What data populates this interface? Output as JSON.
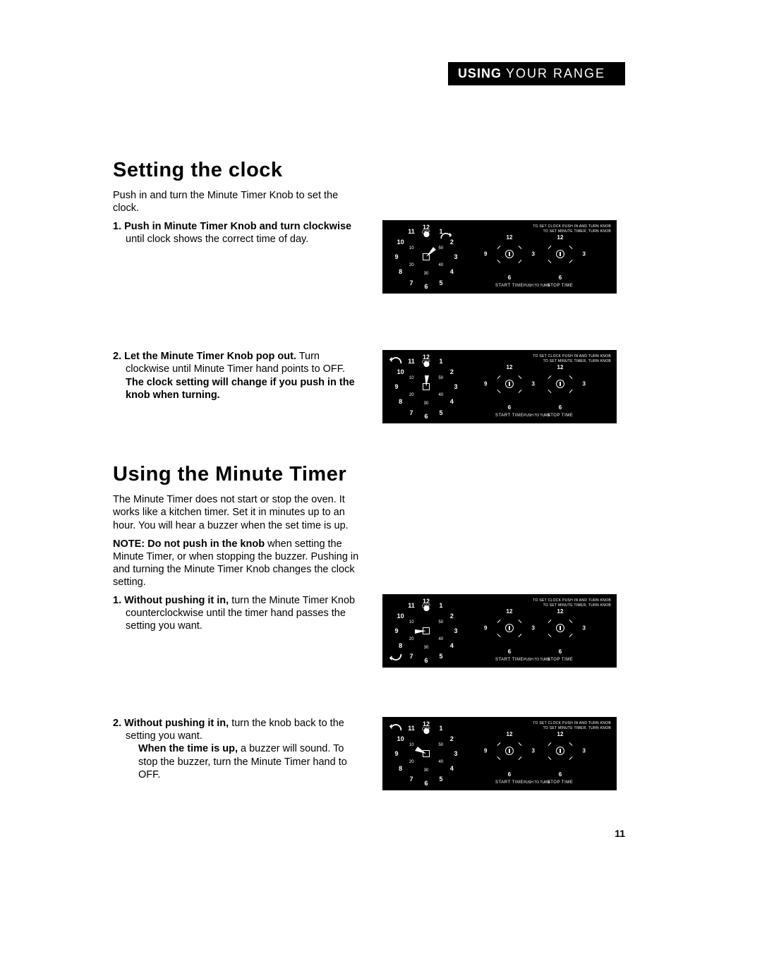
{
  "header": {
    "bold": "USING",
    "rest": "YOUR RANGE"
  },
  "page_number": "11",
  "section1": {
    "title": "Setting the clock",
    "intro": "Push in and turn the Minute Timer Knob to set the clock.",
    "step1_num": "1. ",
    "step1_bold": "Push in Minute Timer Knob and turn clockwise",
    "step1_rest": " until clock shows the correct time of day.",
    "step2_num": "2. ",
    "step2_bold1": "Let the Minute Timer Knob pop out.",
    "step2_mid": " Turn clockwise until Minute Timer hand points to OFF. ",
    "step2_bold2": "The clock setting will change if you push in the knob when turning."
  },
  "section2": {
    "title": "Using the Minute Timer",
    "intro": "The Minute Timer does not start or stop the oven. It works like a kitchen timer. Set it in minutes up to an hour. You will hear a buzzer when the set time is up.",
    "note_bold": "NOTE: Do not push in the knob",
    "note_rest": " when setting the Minute Timer, or when stopping the buzzer. Pushing in and turning the Minute Timer Knob changes the clock setting.",
    "step1_num": "1. ",
    "step1_bold": "Without pushing it in,",
    "step1_rest": " turn the Minute Timer Knob counterclockwise until the timer hand passes the setting you want.",
    "step2_num": "2. ",
    "step2_bold1": "Without pushing it in,",
    "step2_mid": " turn the knob back to the setting you want.",
    "step2_indent_bold": "When the time is up,",
    "step2_indent_rest": " a buzzer will sound. To stop the buzzer, turn the Minute Timer hand to OFF."
  },
  "panel": {
    "hours": [
      "12",
      "1",
      "2",
      "3",
      "4",
      "5",
      "6",
      "7",
      "8",
      "9",
      "10",
      "11"
    ],
    "off": "OFF",
    "minutes": [
      "10",
      "20",
      "30",
      "40",
      "50"
    ],
    "top_text1": "TO SET CLOCK PUSH IN AND TURN KNOB",
    "top_text2": "TO SET MINUTE TIMER, TURN KNOB",
    "push": "PUSH TO TURN",
    "start": "START TIME",
    "stop": "STOP TIME",
    "sub_nums": {
      "t": "12",
      "r": "3",
      "b": "6",
      "l": "9"
    },
    "num_3_9": {
      "l": "3",
      "m": "9"
    }
  }
}
